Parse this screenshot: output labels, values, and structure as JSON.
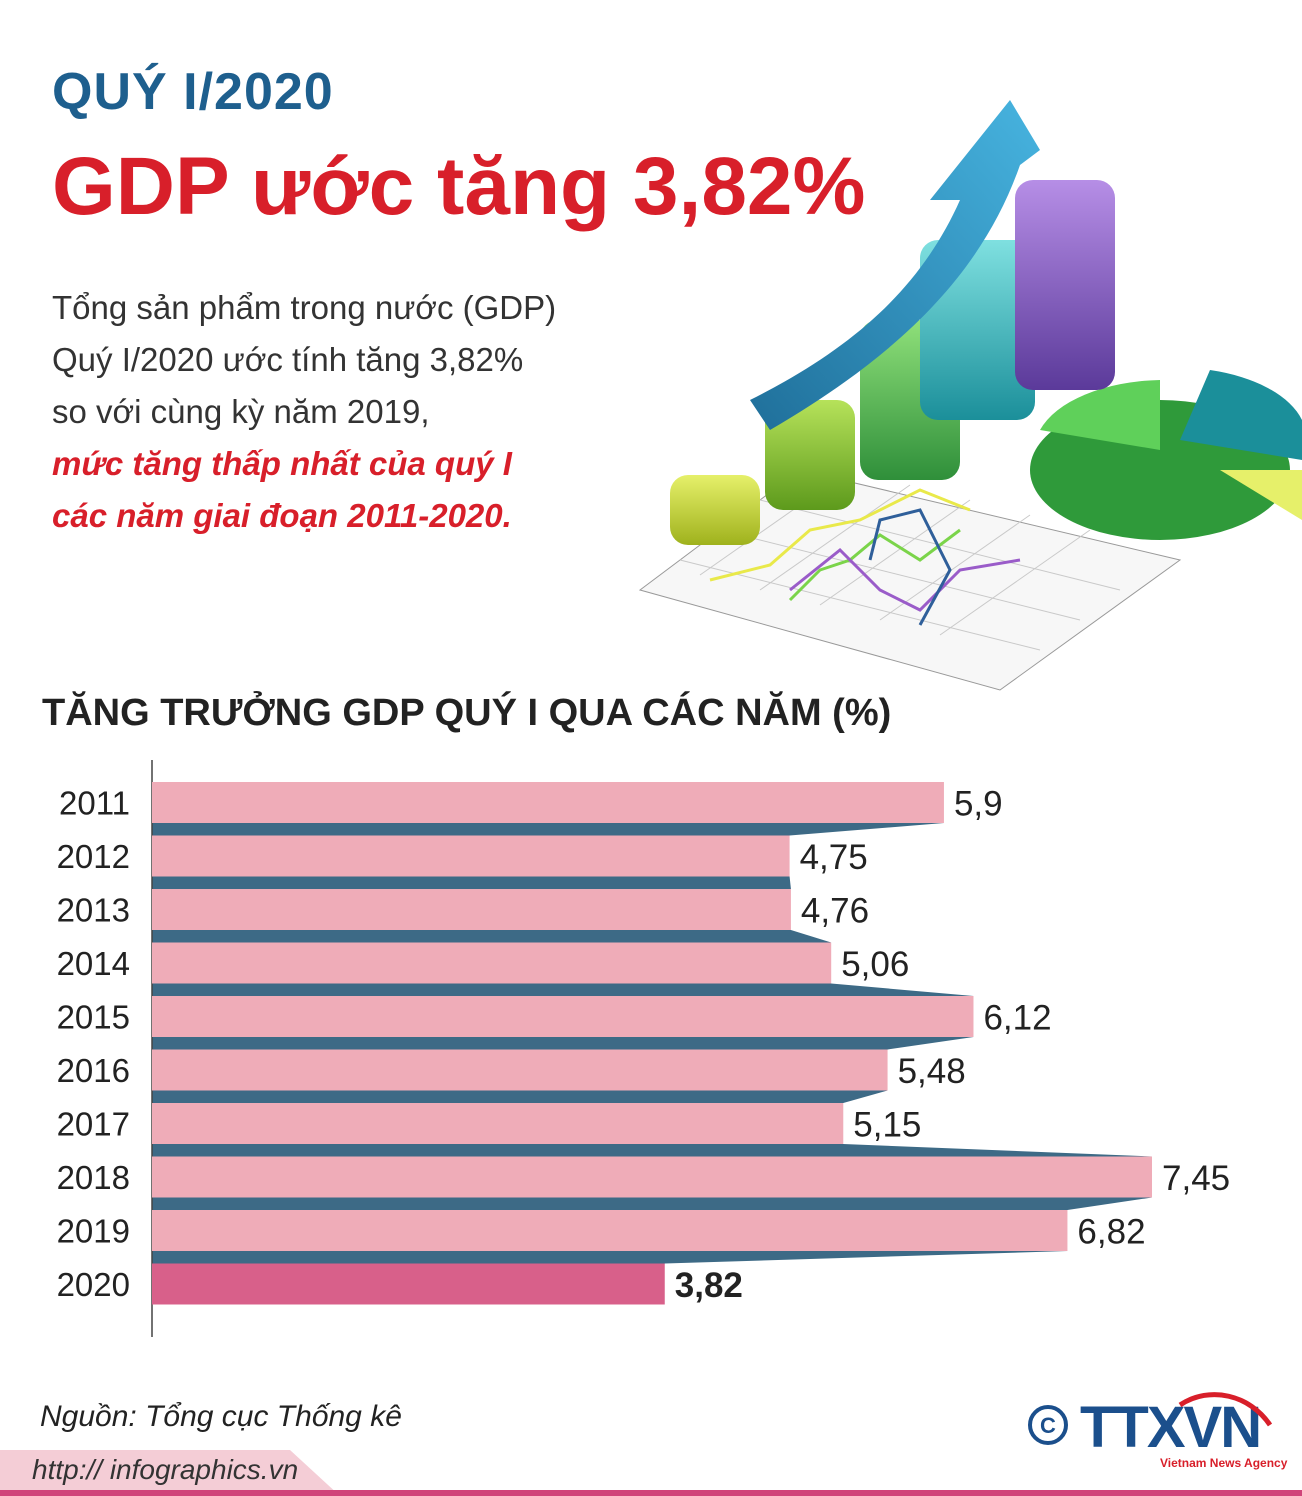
{
  "header": {
    "kicker": "QUÝ I/2020",
    "headline": "GDP ước tăng 3,82%"
  },
  "intro": {
    "lines": [
      "Tổng sản phẩm trong nước (GDP)",
      "Quý I/2020 ước tính tăng 3,82%",
      "so với cùng kỳ năm 2019,"
    ],
    "highlight": [
      "mức tăng thấp nhất của quý I",
      "các năm giai đoạn 2011-2020."
    ]
  },
  "chart_data": {
    "type": "bar",
    "orientation": "horizontal",
    "title": "TĂNG TRƯỞNG GDP QUÝ I QUA CÁC NĂM (%)",
    "categories": [
      "2011",
      "2012",
      "2013",
      "2014",
      "2015",
      "2016",
      "2017",
      "2018",
      "2019",
      "2020"
    ],
    "values": [
      5.9,
      4.75,
      4.76,
      5.06,
      6.12,
      5.48,
      5.15,
      7.45,
      6.82,
      3.82
    ],
    "value_labels": [
      "5,9",
      "4,75",
      "4,76",
      "5,06",
      "6,12",
      "5,48",
      "5,15",
      "7,45",
      "6,82",
      "3,82"
    ],
    "highlight_category": "2020",
    "xlim": [
      0,
      7.45
    ],
    "colors": {
      "bar": "#efacb8",
      "highlight": "#d8608a",
      "connector": "#3d6a86"
    }
  },
  "source": "Nguồn: Tổng cục Thống kê",
  "footer": {
    "url": "http:// infographics.vn"
  },
  "logo": {
    "copyright": "©",
    "brand": "TTXVN",
    "tagline": "Vietnam News Agency",
    "colors": {
      "navy": "#1b4f8c",
      "red": "#d81f2a"
    }
  }
}
